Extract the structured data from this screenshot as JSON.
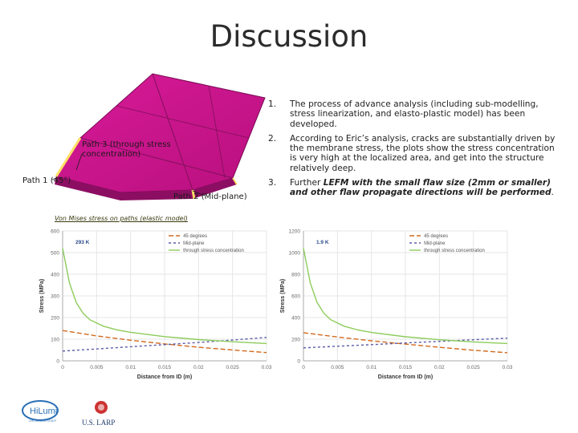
{
  "slide": {
    "title": "Discussion"
  },
  "figure": {
    "labels": {
      "path3": "Path 3 (through stress concentration)",
      "path1": "Path 1 (45°)",
      "path2": "Path 2 (Mid-plane)"
    },
    "chart_caption": "Von Mises stress on paths (elastic model)",
    "colors": {
      "model": "#c8148a",
      "model_dark": "#8c0e62",
      "accent": "#ffe066"
    }
  },
  "bullets": [
    {
      "num": "1.",
      "text": "The process of advance analysis  (including sub-modelling, stress linearization, and elasto-plastic model) has been developed."
    },
    {
      "num": "2.",
      "text": "According to Eric’s analysis, cracks are substantially driven by the membrane stress, the plots show the stress concentration is very high at the localized area, and get into the structure relatively deep."
    },
    {
      "num": "3.",
      "text_plain": "Further ",
      "text_em": "LEFM with the small flaw size (2mm or smaller) and other flaw propagate directions will be performed",
      "text_end": "."
    }
  ],
  "chart_data": [
    {
      "type": "line",
      "annotation": "293 K",
      "xlabel": "Distance from ID (m)",
      "ylabel": "Stress (MPa)",
      "xlim": [
        0,
        0.03
      ],
      "ylim": [
        0,
        600
      ],
      "xticks": [
        "0",
        "0.005",
        "0.01",
        "0.015",
        "0.02",
        "0.025",
        "0.03"
      ],
      "yticks": [
        "0",
        "100",
        "200",
        "300",
        "400",
        "500",
        "600"
      ],
      "legend": "top-right",
      "series": [
        {
          "name": "45 degrees",
          "color": "#d2691e",
          "dash": "6,3",
          "x": [
            0,
            0.005,
            0.01,
            0.015,
            0.02,
            0.025,
            0.03
          ],
          "y": [
            140,
            115,
            95,
            78,
            63,
            50,
            38
          ]
        },
        {
          "name": "Mid-plane",
          "color": "#5a5aa8",
          "dash": "3,3",
          "x": [
            0,
            0.005,
            0.01,
            0.015,
            0.02,
            0.025,
            0.03
          ],
          "y": [
            45,
            55,
            65,
            75,
            85,
            96,
            108
          ]
        },
        {
          "name": "through stress concentration",
          "color": "#8ccc5a",
          "dash": "",
          "x": [
            0,
            0.001,
            0.002,
            0.003,
            0.004,
            0.006,
            0.008,
            0.01,
            0.015,
            0.02,
            0.025,
            0.03
          ],
          "y": [
            520,
            360,
            270,
            220,
            190,
            160,
            143,
            132,
            112,
            98,
            88,
            80
          ]
        }
      ]
    },
    {
      "type": "line",
      "annotation": "1.9 K",
      "xlabel": "Distance from ID (m)",
      "ylabel": "Stress (MPa)",
      "xlim": [
        0,
        0.03
      ],
      "ylim": [
        0,
        1200
      ],
      "xticks": [
        "0",
        "0.005",
        "0.01",
        "0.015",
        "0.02",
        "0.025",
        "0.03"
      ],
      "yticks": [
        "0",
        "200",
        "400",
        "600",
        "800",
        "1000",
        "1200"
      ],
      "legend": "top-right",
      "series": [
        {
          "name": "45 degrees",
          "color": "#d2691e",
          "dash": "6,3",
          "x": [
            0,
            0.005,
            0.01,
            0.015,
            0.02,
            0.025,
            0.03
          ],
          "y": [
            260,
            220,
            185,
            155,
            125,
            98,
            75
          ]
        },
        {
          "name": "Mid-plane",
          "color": "#5a5aa8",
          "dash": "3,3",
          "x": [
            0,
            0.005,
            0.01,
            0.015,
            0.02,
            0.025,
            0.03
          ],
          "y": [
            120,
            135,
            150,
            165,
            180,
            195,
            210
          ]
        },
        {
          "name": "through stress concentration",
          "color": "#8ccc5a",
          "dash": "",
          "x": [
            0,
            0.001,
            0.002,
            0.003,
            0.004,
            0.006,
            0.008,
            0.01,
            0.015,
            0.02,
            0.025,
            0.03
          ],
          "y": [
            1040,
            720,
            540,
            440,
            380,
            320,
            285,
            262,
            222,
            195,
            175,
            160
          ]
        }
      ]
    }
  ],
  "footer": {
    "logo1_text": "HiLumi",
    "logo1_sub": "LHC DESIGN STUDY",
    "logo2_text": "U.S. LARP"
  }
}
